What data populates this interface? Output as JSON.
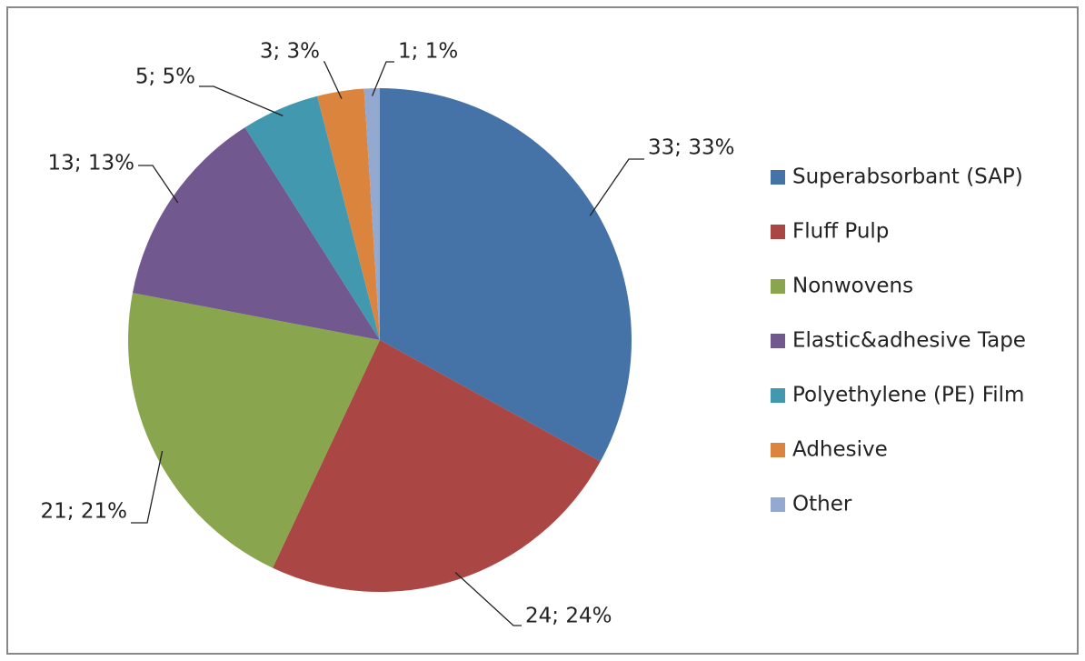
{
  "chart_data": {
    "type": "pie",
    "categories": [
      "Superabsorbant (SAP)",
      "Fluff Pulp",
      "Nonwovens",
      "Elastic&adhesive Tape",
      "Polyethylene (PE) Film",
      "Adhesive",
      "Other"
    ],
    "values": [
      33,
      24,
      21,
      13,
      5,
      3,
      1
    ],
    "value_labels": [
      "33; 33%",
      "24; 24%",
      "21; 21%",
      "13; 13%",
      "5; 5%",
      "3; 3%",
      "1; 1%"
    ],
    "colors": [
      "#4572a7",
      "#aa4643",
      "#89a54e",
      "#71588f",
      "#4198af",
      "#db843d",
      "#93a9cf"
    ],
    "legend": "right"
  }
}
